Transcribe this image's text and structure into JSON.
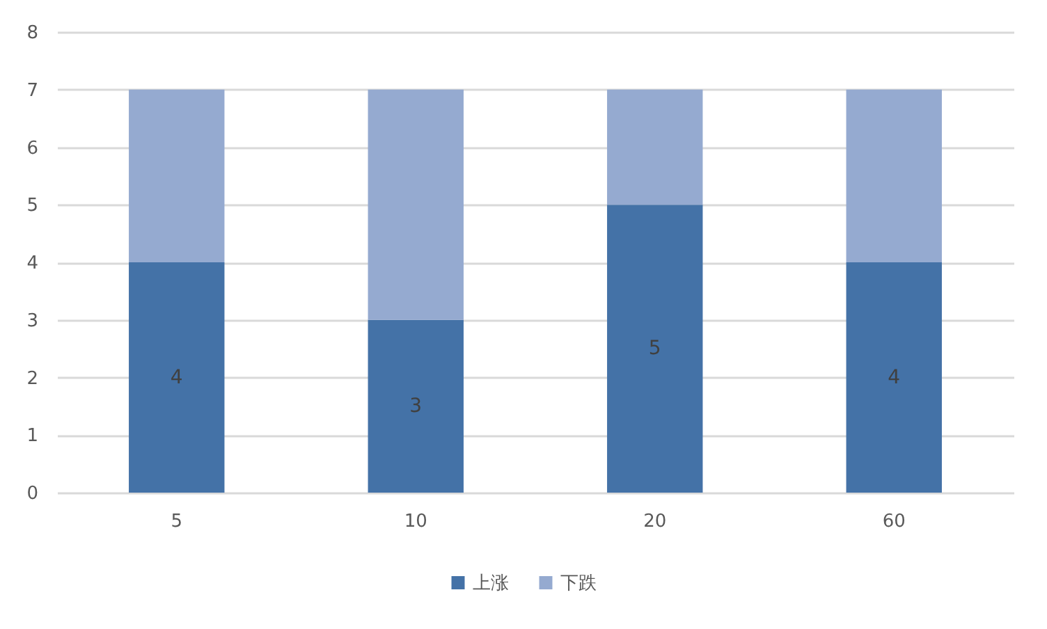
{
  "chart_data": {
    "type": "bar",
    "stacked": true,
    "categories": [
      "5",
      "10",
      "20",
      "60"
    ],
    "series": [
      {
        "name": "上涨",
        "color": "#4472a7",
        "values": [
          4,
          3,
          5,
          4
        ],
        "value_labels": [
          "4",
          "3",
          "5",
          "4"
        ]
      },
      {
        "name": "下跌",
        "color": "#95aad0",
        "values": [
          3,
          4,
          2,
          3
        ]
      }
    ],
    "ylim": [
      0,
      8
    ],
    "yticks": [
      0,
      1,
      2,
      3,
      4,
      5,
      6,
      7,
      8
    ],
    "grid": "y",
    "legend": "bottom"
  }
}
